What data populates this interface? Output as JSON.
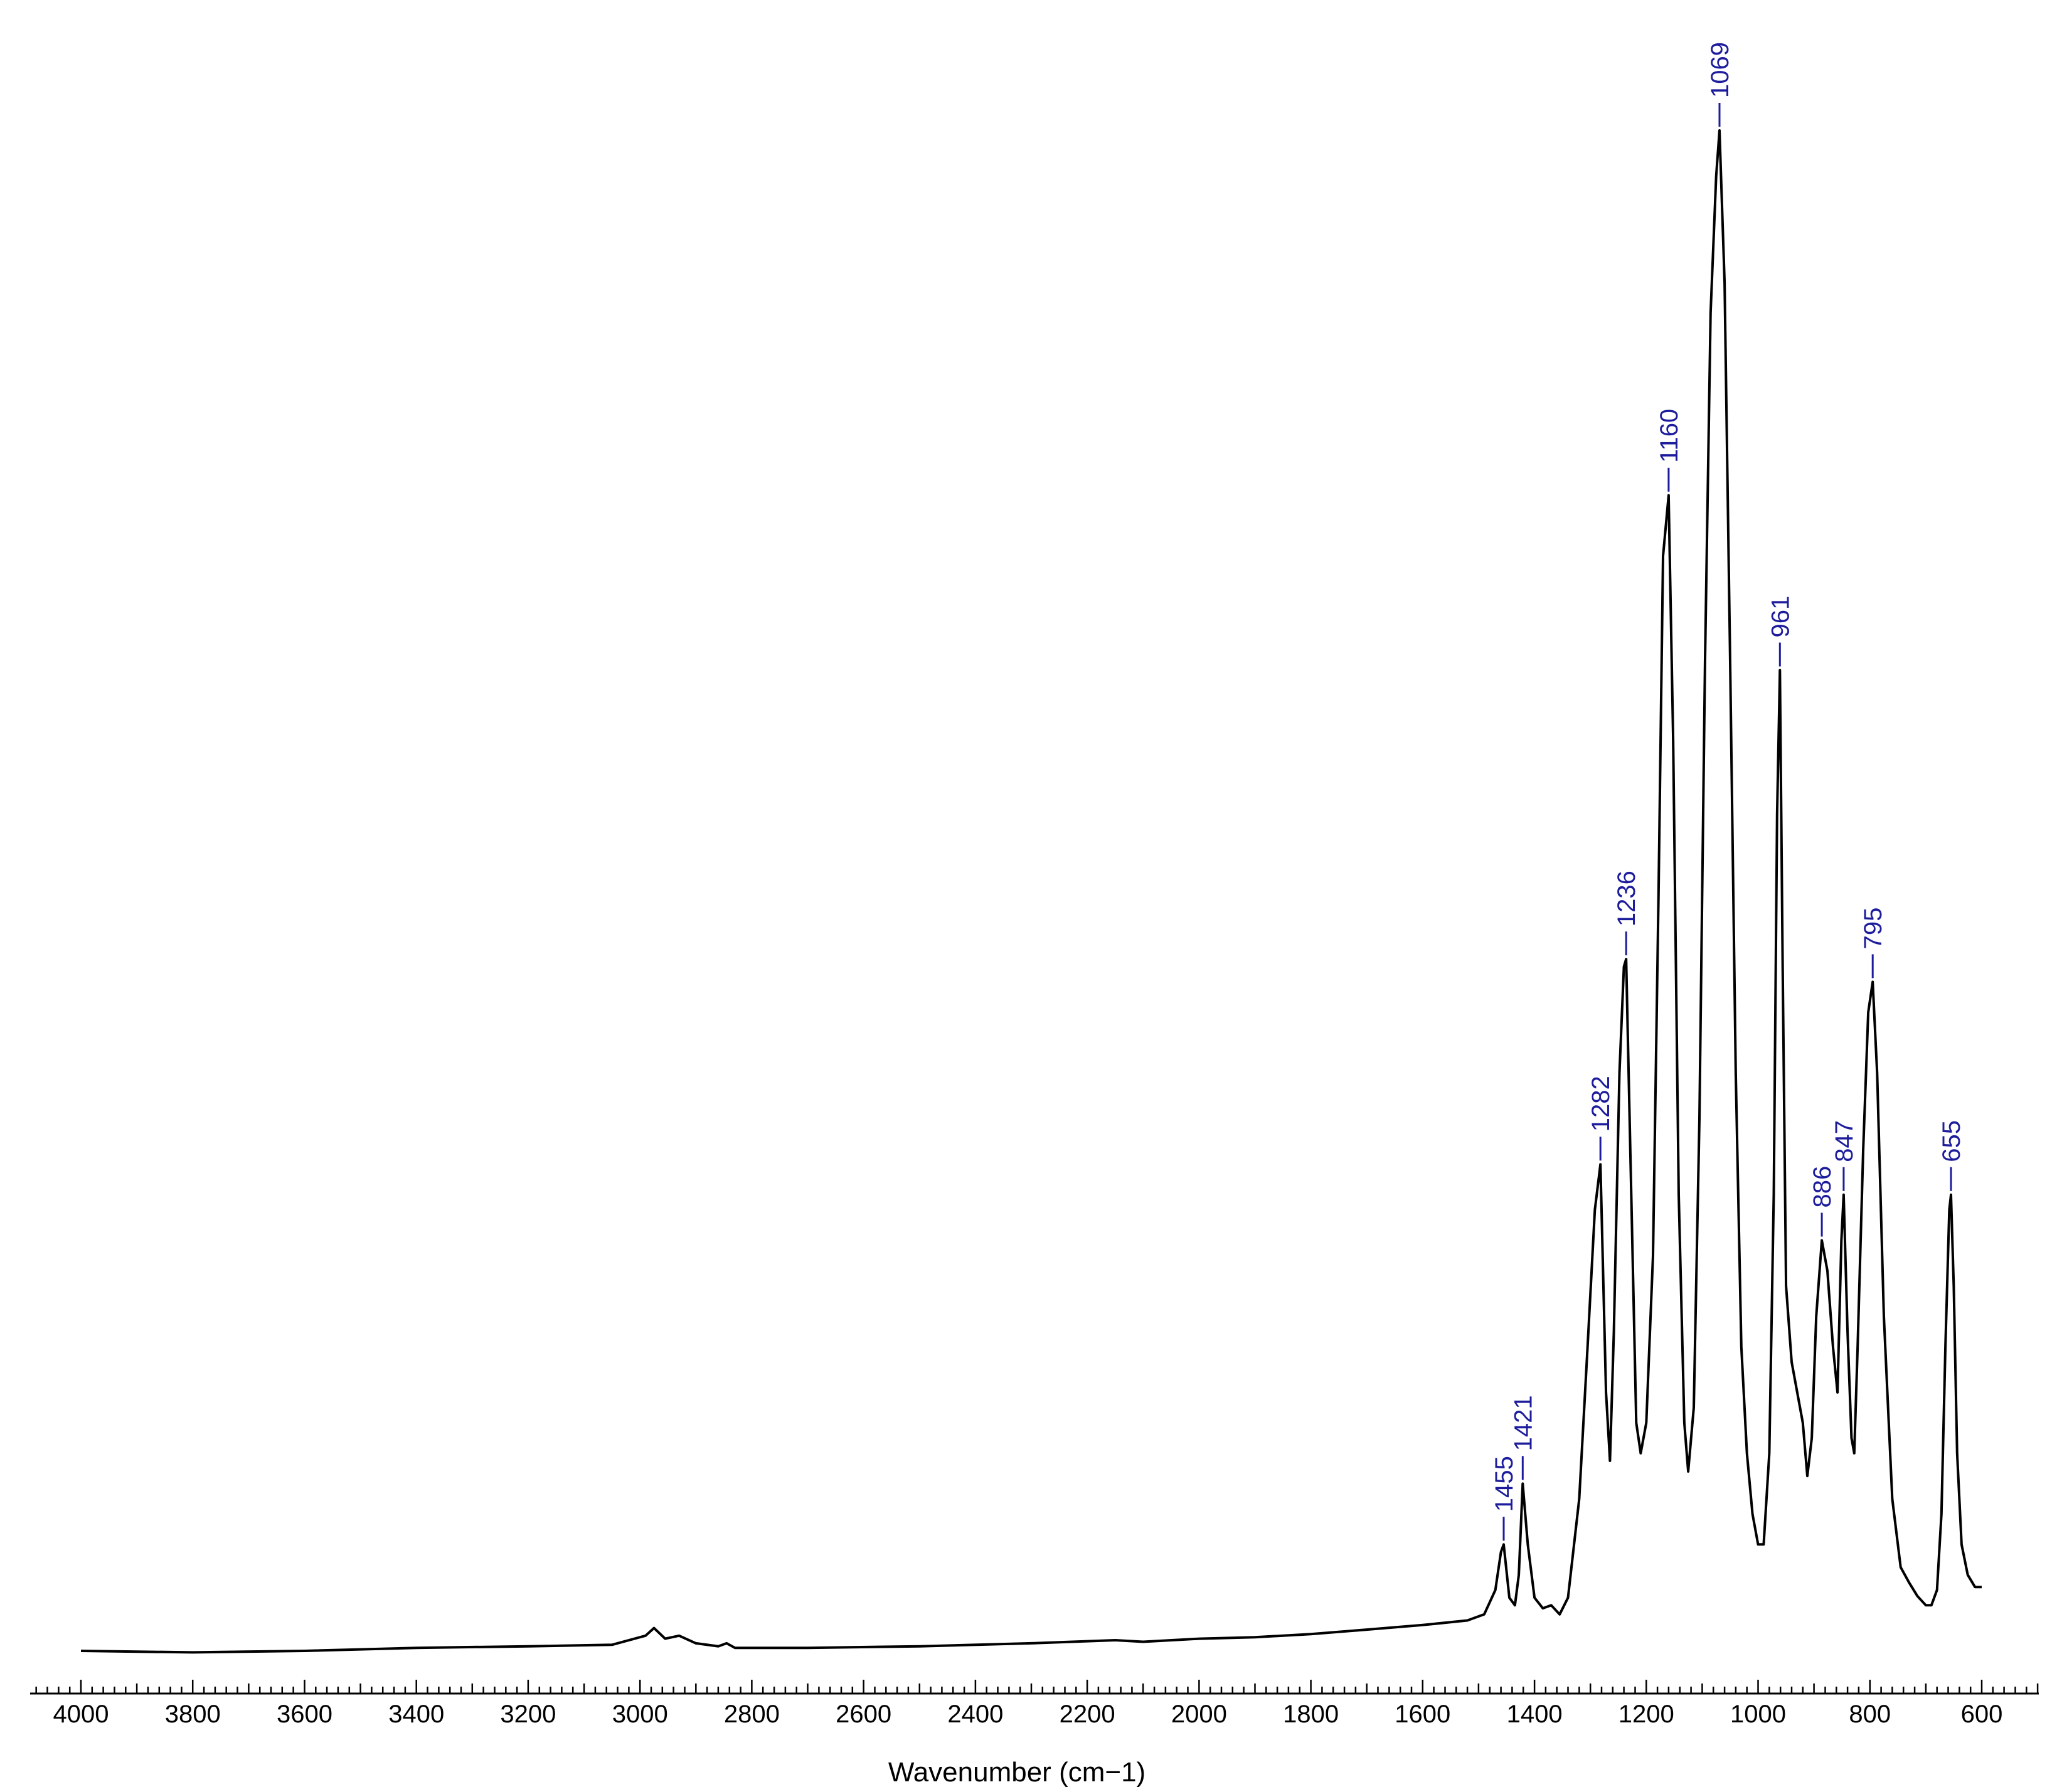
{
  "colors": {
    "trace": "#000000",
    "annotation": "#1c1c9c",
    "axis": "#000000",
    "background": "#ffffff"
  },
  "chart_data": {
    "type": "line",
    "title": "",
    "xlabel": "Wavenumber (cm−1)",
    "ylabel": "",
    "xlim": [
      4000,
      600
    ],
    "x_reversed": true,
    "ylim": [
      0,
      1
    ],
    "grid": false,
    "legend": "none",
    "x_ticks": [
      4000,
      3800,
      3600,
      3400,
      3200,
      3000,
      2800,
      2600,
      2400,
      2200,
      2000,
      1800,
      1600,
      1400,
      1200,
      1000,
      800,
      600
    ],
    "x_tick_labels": [
      "4000",
      "3800",
      "3600",
      "3400",
      "3200",
      "3000",
      "2800",
      "2600",
      "2400",
      "2200",
      "2000",
      "1800",
      "1600",
      "1400",
      "1200",
      "1000",
      "800",
      "600"
    ],
    "series": [
      {
        "values": [
          [
            4000,
            0.0
          ],
          [
            3800,
            -0.001
          ],
          [
            3600,
            0.0
          ],
          [
            3400,
            0.002
          ],
          [
            3200,
            0.003
          ],
          [
            3050,
            0.004
          ],
          [
            2990,
            0.01
          ],
          [
            2975,
            0.015
          ],
          [
            2955,
            0.008
          ],
          [
            2930,
            0.01
          ],
          [
            2900,
            0.005
          ],
          [
            2860,
            0.003
          ],
          [
            2845,
            0.005
          ],
          [
            2830,
            0.002
          ],
          [
            2700,
            0.002
          ],
          [
            2500,
            0.003
          ],
          [
            2300,
            0.005
          ],
          [
            2150,
            0.007
          ],
          [
            2100,
            0.006
          ],
          [
            2000,
            0.008
          ],
          [
            1900,
            0.009
          ],
          [
            1800,
            0.011
          ],
          [
            1700,
            0.014
          ],
          [
            1600,
            0.017
          ],
          [
            1520,
            0.02
          ],
          [
            1490,
            0.024
          ],
          [
            1470,
            0.04
          ],
          [
            1460,
            0.065
          ],
          [
            1455,
            0.07
          ],
          [
            1445,
            0.035
          ],
          [
            1435,
            0.03
          ],
          [
            1428,
            0.05
          ],
          [
            1421,
            0.11
          ],
          [
            1412,
            0.07
          ],
          [
            1400,
            0.035
          ],
          [
            1385,
            0.028
          ],
          [
            1370,
            0.03
          ],
          [
            1355,
            0.024
          ],
          [
            1340,
            0.035
          ],
          [
            1320,
            0.1
          ],
          [
            1305,
            0.2
          ],
          [
            1292,
            0.29
          ],
          [
            1282,
            0.32
          ],
          [
            1272,
            0.17
          ],
          [
            1265,
            0.125
          ],
          [
            1258,
            0.21
          ],
          [
            1248,
            0.38
          ],
          [
            1240,
            0.45
          ],
          [
            1236,
            0.455
          ],
          [
            1228,
            0.32
          ],
          [
            1218,
            0.15
          ],
          [
            1210,
            0.13
          ],
          [
            1200,
            0.15
          ],
          [
            1188,
            0.26
          ],
          [
            1178,
            0.5
          ],
          [
            1170,
            0.72
          ],
          [
            1160,
            0.76
          ],
          [
            1152,
            0.6
          ],
          [
            1142,
            0.3
          ],
          [
            1132,
            0.15
          ],
          [
            1125,
            0.118
          ],
          [
            1115,
            0.16
          ],
          [
            1105,
            0.35
          ],
          [
            1095,
            0.65
          ],
          [
            1085,
            0.88
          ],
          [
            1075,
            0.97
          ],
          [
            1069,
            1.0
          ],
          [
            1060,
            0.9
          ],
          [
            1050,
            0.65
          ],
          [
            1040,
            0.38
          ],
          [
            1030,
            0.2
          ],
          [
            1020,
            0.13
          ],
          [
            1010,
            0.09
          ],
          [
            1000,
            0.07
          ],
          [
            990,
            0.07
          ],
          [
            980,
            0.13
          ],
          [
            972,
            0.3
          ],
          [
            966,
            0.55
          ],
          [
            961,
            0.645
          ],
          [
            956,
            0.45
          ],
          [
            950,
            0.24
          ],
          [
            940,
            0.19
          ],
          [
            930,
            0.17
          ],
          [
            920,
            0.15
          ],
          [
            912,
            0.115
          ],
          [
            904,
            0.14
          ],
          [
            896,
            0.22
          ],
          [
            886,
            0.27
          ],
          [
            876,
            0.25
          ],
          [
            866,
            0.2
          ],
          [
            858,
            0.17
          ],
          [
            851,
            0.27
          ],
          [
            847,
            0.3
          ],
          [
            840,
            0.21
          ],
          [
            833,
            0.14
          ],
          [
            828,
            0.13
          ],
          [
            822,
            0.2
          ],
          [
            812,
            0.33
          ],
          [
            803,
            0.42
          ],
          [
            795,
            0.44
          ],
          [
            787,
            0.38
          ],
          [
            775,
            0.22
          ],
          [
            760,
            0.1
          ],
          [
            745,
            0.055
          ],
          [
            730,
            0.045
          ],
          [
            715,
            0.036
          ],
          [
            700,
            0.03
          ],
          [
            690,
            0.03
          ],
          [
            680,
            0.04
          ],
          [
            672,
            0.09
          ],
          [
            665,
            0.2
          ],
          [
            658,
            0.29
          ],
          [
            655,
            0.3
          ],
          [
            650,
            0.24
          ],
          [
            644,
            0.13
          ],
          [
            636,
            0.07
          ],
          [
            625,
            0.05
          ],
          [
            612,
            0.042
          ],
          [
            600,
            0.042
          ]
        ]
      }
    ],
    "annotations": [
      {
        "x": 1455,
        "y": 0.07,
        "label": "1455"
      },
      {
        "x": 1421,
        "y": 0.11,
        "label": "1421"
      },
      {
        "x": 1282,
        "y": 0.32,
        "label": "1282"
      },
      {
        "x": 1236,
        "y": 0.455,
        "label": "1236"
      },
      {
        "x": 1160,
        "y": 0.76,
        "label": "1160"
      },
      {
        "x": 1069,
        "y": 1.0,
        "label": "1069"
      },
      {
        "x": 961,
        "y": 0.645,
        "label": "961"
      },
      {
        "x": 886,
        "y": 0.27,
        "label": "886"
      },
      {
        "x": 847,
        "y": 0.3,
        "label": "847"
      },
      {
        "x": 795,
        "y": 0.44,
        "label": "795"
      },
      {
        "x": 655,
        "y": 0.3,
        "label": "655"
      }
    ]
  }
}
